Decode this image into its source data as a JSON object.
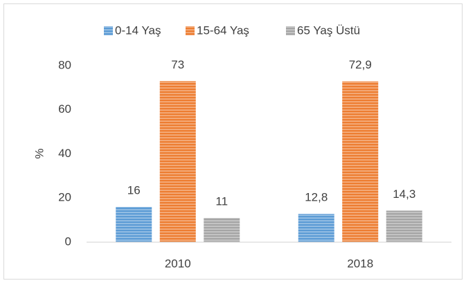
{
  "chart_data": {
    "type": "bar",
    "categories": [
      "2010",
      "2018"
    ],
    "series": [
      {
        "name": "0-14 Yaş",
        "color": "#5b9bd5",
        "values": [
          16,
          12.8
        ],
        "value_labels": [
          "16",
          "12,8"
        ]
      },
      {
        "name": "15-64 Yaş",
        "color": "#ed7d31",
        "values": [
          73,
          72.9
        ],
        "value_labels": [
          "73",
          "72,9"
        ]
      },
      {
        "name": "65 Yaş Üstü",
        "color": "#a5a5a5",
        "values": [
          11,
          14.3
        ],
        "value_labels": [
          "11",
          "14,3"
        ]
      }
    ],
    "y_label": "%",
    "ylim": [
      0,
      80
    ],
    "yticks": [
      0,
      20,
      40,
      60,
      80
    ],
    "grid": false,
    "legend": "top"
  }
}
